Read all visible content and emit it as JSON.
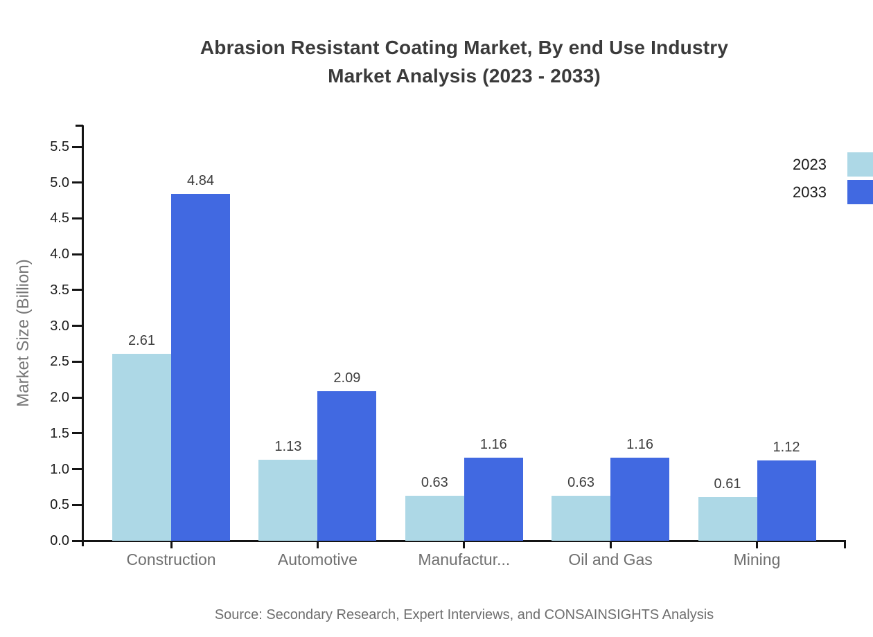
{
  "title": {
    "line1": "Abrasion Resistant Coating Market, By end Use Industry",
    "line2": "Market Analysis (2023 - 2033)"
  },
  "legend": {
    "items": [
      {
        "label": "2023",
        "color": "#ADD8E6"
      },
      {
        "label": "2033",
        "color": "#4169E1"
      }
    ]
  },
  "source": {
    "text": "Source: Secondary Research, Expert Interviews, and CONSAINSIGHTS Analysis"
  },
  "chart_data": {
    "type": "bar",
    "title": "Abrasion Resistant Coating Market, By end Use Industry Market Analysis (2023 - 2033)",
    "categories": [
      "Construction",
      "Automotive",
      "Manufactur...",
      "Oil and Gas",
      "Mining"
    ],
    "series": [
      {
        "name": "2023",
        "color": "#ADD8E6",
        "values": [
          2.61,
          1.13,
          0.63,
          0.63,
          0.61
        ]
      },
      {
        "name": "2033",
        "color": "#4169E1",
        "values": [
          4.84,
          2.09,
          1.16,
          1.16,
          1.12
        ]
      }
    ],
    "xlabel": "",
    "ylabel": "Market Size (Billion)",
    "ylim": [
      0.0,
      5.8
    ],
    "yticks": [
      "0.0",
      "0.5",
      "1.0",
      "1.5",
      "2.0",
      "2.5",
      "3.0",
      "3.5",
      "4.0",
      "4.5",
      "5.0",
      "5.5"
    ],
    "grid": false,
    "value_labels": true,
    "legend_position": "top-right",
    "axis_color": "#141414",
    "background_color": "#ffffff"
  }
}
